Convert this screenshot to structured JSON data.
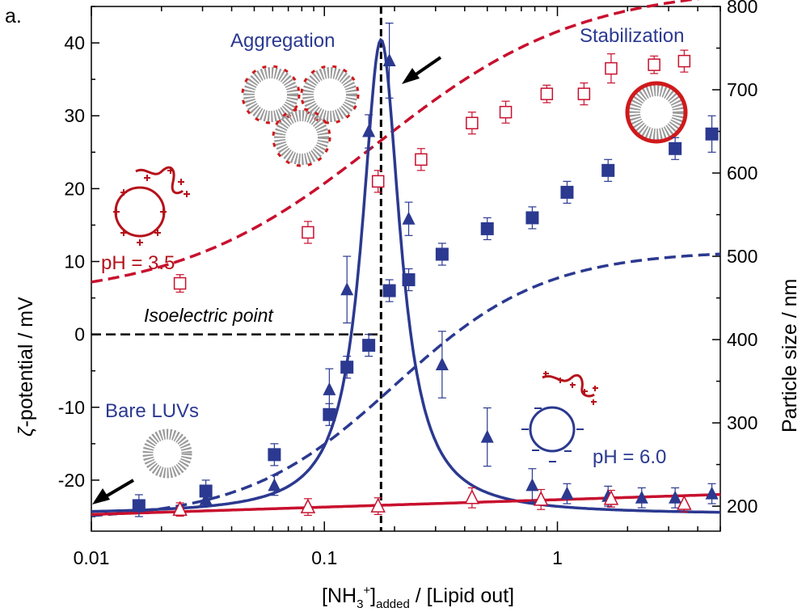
{
  "panel_label": "a.",
  "colors": {
    "blue": "#2b3990",
    "red": "#c8102e",
    "grey": "#9a9a9a"
  },
  "chart_data": {
    "type": "scatter",
    "x_scale": "log",
    "xlim": [
      0.01,
      5
    ],
    "ylim_left": [
      -27,
      45
    ],
    "ylim_right": [
      170,
      800
    ],
    "xlabel_main": "[NH",
    "xlabel_sub3": "3",
    "xlabel_sup": "+",
    "xlabel_mid": "]",
    "xlabel_sub_added": "added",
    "xlabel_tail": " / [Lipid out]",
    "ylabel_left_sym": "ζ",
    "ylabel_left": "-potential / mV",
    "ylabel_right": "Particle size / nm",
    "x_ticks": [
      0.01,
      0.1,
      1
    ],
    "x_tick_labels": [
      "0.01",
      "0.1",
      "1"
    ],
    "y_left_ticks": [
      -20,
      -10,
      0,
      10,
      20,
      30,
      40
    ],
    "y_left_tick_labels": [
      "-20",
      "-10",
      "0",
      "10",
      "20",
      "30",
      "40"
    ],
    "y_right_ticks": [
      200,
      300,
      400,
      500,
      600,
      700,
      800
    ],
    "y_right_tick_labels": [
      "200",
      "300",
      "400",
      "500",
      "600",
      "700",
      "800"
    ],
    "isoelectric_x": 0.175,
    "annotations": {
      "aggregation": "Aggregation",
      "stabilization": "Stabilization",
      "isoelectric": "Isoelectric point",
      "bare": "Bare LUVs",
      "ph35": "pH = 3.5",
      "ph60": "pH = 6.0"
    },
    "series": [
      {
        "marker": "open-square",
        "axis": "left",
        "color": "#c8102e",
        "x": [
          0.024,
          0.085,
          0.17,
          0.26,
          0.43,
          0.6,
          0.9,
          1.3,
          1.7,
          2.6,
          3.5
        ],
        "y": [
          7,
          14,
          21,
          24,
          29,
          30.5,
          33,
          33,
          36.5,
          37,
          37.5
        ],
        "err": [
          1.2,
          1.5,
          1.5,
          1.5,
          1.5,
          1.5,
          1.2,
          1.5,
          2,
          1.2,
          1.5
        ]
      },
      {
        "marker": "filled-square",
        "axis": "left",
        "color": "#2b3990",
        "x": [
          0.016,
          0.031,
          0.061,
          0.105,
          0.125,
          0.155,
          0.19,
          0.23,
          0.32,
          0.5,
          0.78,
          1.1,
          1.65,
          3.2,
          4.6
        ],
        "y": [
          -23.5,
          -21.5,
          -16.5,
          -11,
          -4.5,
          -1.5,
          6,
          7.5,
          11,
          14.5,
          16,
          19.5,
          22.5,
          25.5,
          27.5
        ],
        "err": [
          1.5,
          1.5,
          1.5,
          1.5,
          1.5,
          1.5,
          1.5,
          1.5,
          1.5,
          1.5,
          1.5,
          1.5,
          1.5,
          1.5,
          2.5
        ]
      },
      {
        "marker": "filled-triangle",
        "axis": "right",
        "color": "#2b3990",
        "x": [
          0.031,
          0.061,
          0.105,
          0.125,
          0.155,
          0.19,
          0.23,
          0.32,
          0.5,
          0.78,
          1.1,
          1.65,
          2.3,
          3.2,
          4.6
        ],
        "y": [
          208,
          225,
          340,
          460,
          650,
          735,
          545,
          370,
          283,
          225,
          215,
          212,
          210,
          210,
          215
        ],
        "err": [
          8,
          12,
          25,
          40,
          20,
          45,
          20,
          40,
          35,
          20,
          12,
          12,
          12,
          12,
          12
        ]
      },
      {
        "marker": "open-triangle",
        "axis": "right",
        "color": "#c8102e",
        "x": [
          0.024,
          0.085,
          0.17,
          0.43,
          0.85,
          1.7,
          3.5
        ],
        "y": [
          196,
          199,
          200,
          210,
          208,
          209,
          203
        ],
        "err": [
          8,
          10,
          10,
          12,
          12,
          10,
          10
        ]
      }
    ],
    "fits": [
      {
        "name": "sigmoid fit pH 3.5",
        "kind": "sigmoid",
        "axis": "left",
        "color": "#c8102e",
        "params": [
          4.8,
          43,
          0.17,
          1.0
        ]
      },
      {
        "name": "sigmoid fit pH 6.0",
        "kind": "sigmoid",
        "axis": "left",
        "color": "#2b3990",
        "params": [
          -25.5,
          37,
          0.2,
          1.35
        ]
      },
      {
        "name": "peak fit size",
        "kind": "peak",
        "axis": "right",
        "color": "#2b3990",
        "params": [
          190,
          570,
          0.175,
          0.1
        ]
      },
      {
        "name": "linear fit size",
        "kind": "loglinear",
        "axis": "right",
        "color": "#c8102e",
        "params": [
          190,
          214
        ]
      }
    ]
  }
}
